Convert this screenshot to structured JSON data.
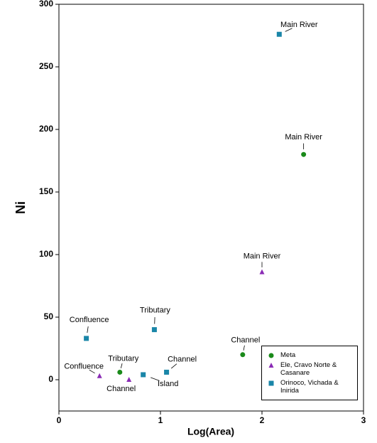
{
  "chart_data": {
    "type": "scatter",
    "x_label": "Log(Area)",
    "y_label": "Ni",
    "xlim": [
      0,
      3
    ],
    "xticks": [
      0,
      1,
      2,
      3
    ],
    "ylim": [
      -25,
      300
    ],
    "yticks": [
      0,
      50,
      100,
      150,
      200,
      250,
      300
    ],
    "series": [
      {
        "name": "Meta",
        "color": "#1a8a1a",
        "marker": "circle",
        "x": [
          2.41,
          1.81,
          0.6
        ],
        "values": [
          180,
          20,
          6
        ],
        "labels": [
          "Main River",
          "Channel",
          "Tributary"
        ]
      },
      {
        "name": "Ele, Cravo Norte & Casanare",
        "color": "#8a2bb5",
        "marker": "triangle",
        "x": [
          2.0,
          0.4,
          0.69
        ],
        "values": [
          86,
          3,
          0
        ],
        "labels": [
          "Main River",
          "Confluence",
          "Channel"
        ]
      },
      {
        "name": "Orinoco, Vichada & Inirida",
        "color": "#1a86a8",
        "marker": "square",
        "x": [
          2.17,
          0.27,
          0.94,
          0.83,
          1.06
        ],
        "values": [
          276,
          33,
          40,
          4,
          6
        ],
        "labels": [
          "Main River",
          "Confluence",
          "Tributary",
          "Island",
          "Channel"
        ]
      }
    ]
  }
}
